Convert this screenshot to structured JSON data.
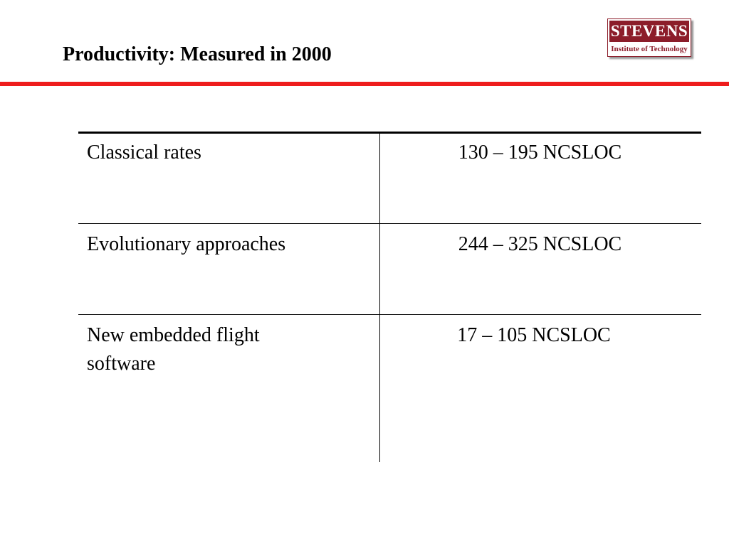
{
  "slide": {
    "title": "Productivity:  Measured in 2000",
    "accent_color": "#ee1c1c"
  },
  "logo": {
    "name": "STEVENS",
    "subtitle": "Institute of Technology",
    "brand_color": "#8c1d2a"
  },
  "table": {
    "rows": [
      {
        "label": "Classical rates",
        "value": "130 – 195 NCSLOC"
      },
      {
        "label": "Evolutionary approaches",
        "value": "244 – 325 NCSLOC"
      },
      {
        "label": "New embedded flight software",
        "value": "17 – 105 NCSLOC"
      }
    ]
  }
}
